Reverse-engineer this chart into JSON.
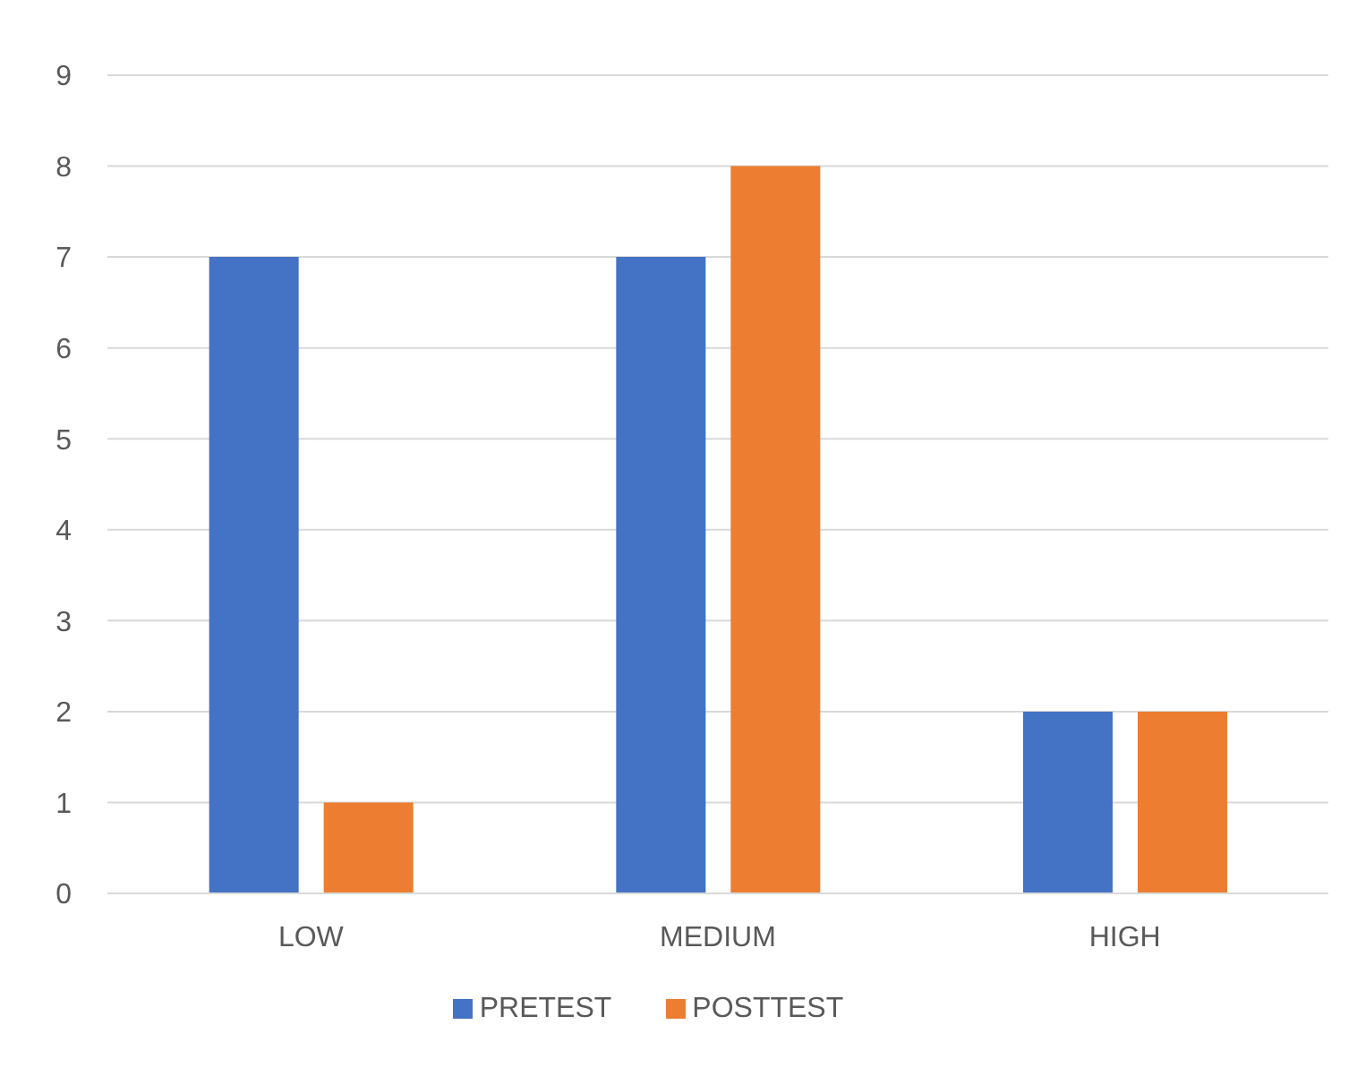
{
  "chart_data": {
    "type": "bar",
    "categories": [
      "LOW",
      "MEDIUM",
      "HIGH"
    ],
    "series": [
      {
        "name": "PRETEST",
        "color": "#4472c4",
        "values": [
          7,
          7,
          2
        ]
      },
      {
        "name": "POSTTEST",
        "color": "#ed7d31",
        "values": [
          1,
          8,
          2
        ]
      }
    ],
    "ylim": [
      0,
      9
    ],
    "yticks": [
      0,
      1,
      2,
      3,
      4,
      5,
      6,
      7,
      8,
      9
    ],
    "grid": "y",
    "legend": "bottom"
  }
}
